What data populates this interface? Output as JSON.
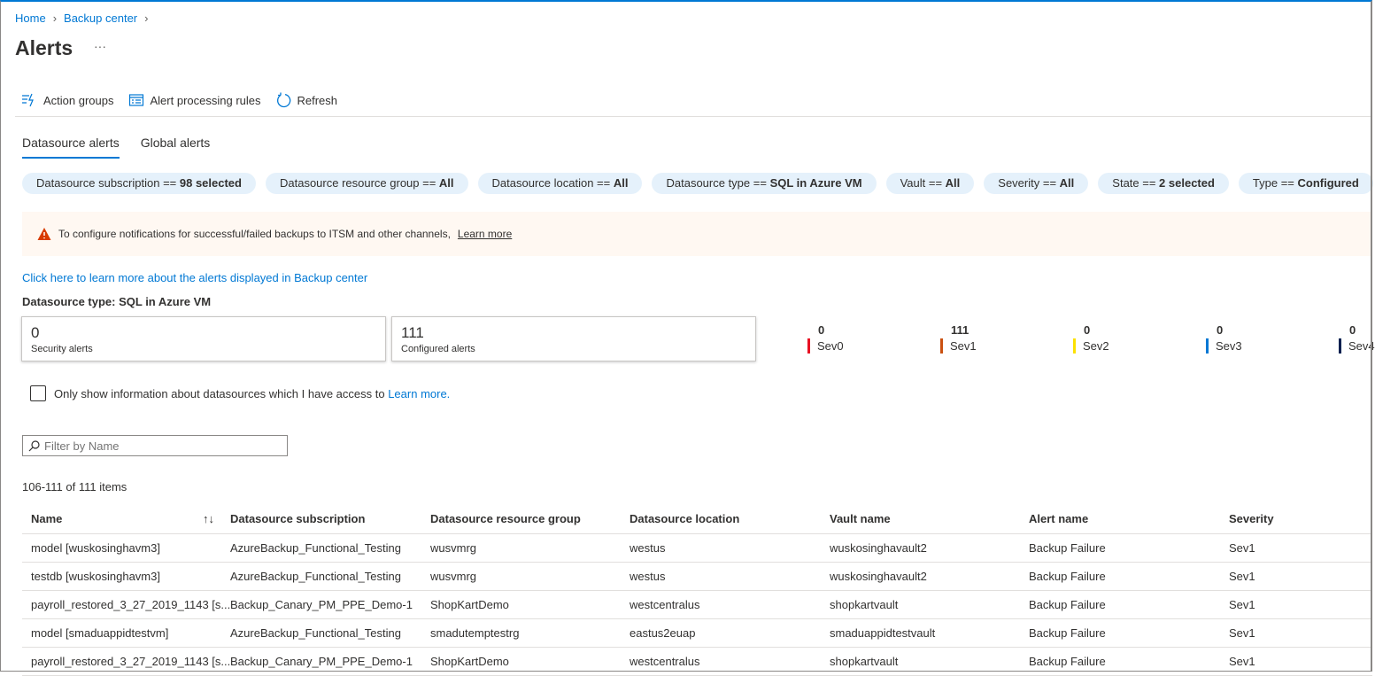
{
  "breadcrumb": [
    "Home",
    "Backup center"
  ],
  "page": {
    "title": "Alerts",
    "more": "···"
  },
  "toolbar": {
    "action_groups": "Action groups",
    "alert_processing_rules": "Alert processing rules",
    "refresh": "Refresh"
  },
  "tabs": [
    "Datasource alerts",
    "Global alerts"
  ],
  "filters": [
    {
      "label": "Datasource subscription == ",
      "value": "98 selected"
    },
    {
      "label": "Datasource resource group == ",
      "value": "All"
    },
    {
      "label": "Datasource location == ",
      "value": "All"
    },
    {
      "label": "Datasource type == ",
      "value": "SQL in Azure VM"
    },
    {
      "label": "Vault == ",
      "value": "All"
    },
    {
      "label": "Severity == ",
      "value": "All"
    },
    {
      "label": "State == ",
      "value": "2 selected"
    },
    {
      "label": "Type == ",
      "value": "Configured"
    }
  ],
  "banner": {
    "text": "To configure notifications for successful/failed backups to ITSM and other channels,",
    "link": "Learn more"
  },
  "learn_link": "Click here to learn more about the alerts displayed in Backup center",
  "datasource_type": "Datasource type: SQL in Azure VM",
  "cards": [
    {
      "count": "0",
      "label": "Security alerts"
    },
    {
      "count": "111",
      "label": "Configured alerts"
    }
  ],
  "severity": [
    {
      "count": "0",
      "label": "Sev0",
      "color": "#e81123"
    },
    {
      "count": "111",
      "label": "Sev1",
      "color": "#ca5010"
    },
    {
      "count": "0",
      "label": "Sev2",
      "color": "#fce100"
    },
    {
      "count": "0",
      "label": "Sev3",
      "color": "#0078d4"
    },
    {
      "count": "0",
      "label": "Sev4",
      "color": "#002050"
    }
  ],
  "access_checkbox": {
    "label": "Only show information about datasources which I have access to ",
    "link": "Learn more."
  },
  "filter_input": {
    "placeholder": "Filter by Name"
  },
  "items_count": "106-111 of 111 items",
  "table": {
    "columns": [
      "Name",
      "Datasource subscription",
      "Datasource resource group",
      "Datasource location",
      "Vault name",
      "Alert name",
      "Severity"
    ],
    "rows": [
      [
        "model [wuskosinghavm3]",
        "AzureBackup_Functional_Testing",
        "wusvmrg",
        "westus",
        "wuskosinghavault2",
        "Backup Failure",
        "Sev1"
      ],
      [
        "testdb [wuskosinghavm3]",
        "AzureBackup_Functional_Testing",
        "wusvmrg",
        "westus",
        "wuskosinghavault2",
        "Backup Failure",
        "Sev1"
      ],
      [
        "payroll_restored_3_27_2019_1143 [s...",
        "Backup_Canary_PM_PPE_Demo-1",
        "ShopKartDemo",
        "westcentralus",
        "shopkartvault",
        "Backup Failure",
        "Sev1"
      ],
      [
        "model [smaduappidtestvm]",
        "AzureBackup_Functional_Testing",
        "smadutemptestrg",
        "eastus2euap",
        "smaduappidtestvault",
        "Backup Failure",
        "Sev1"
      ],
      [
        "payroll_restored_3_27_2019_1143 [s...",
        "Backup_Canary_PM_PPE_Demo-1",
        "ShopKartDemo",
        "westcentralus",
        "shopkartvault",
        "Backup Failure",
        "Sev1"
      ]
    ]
  }
}
